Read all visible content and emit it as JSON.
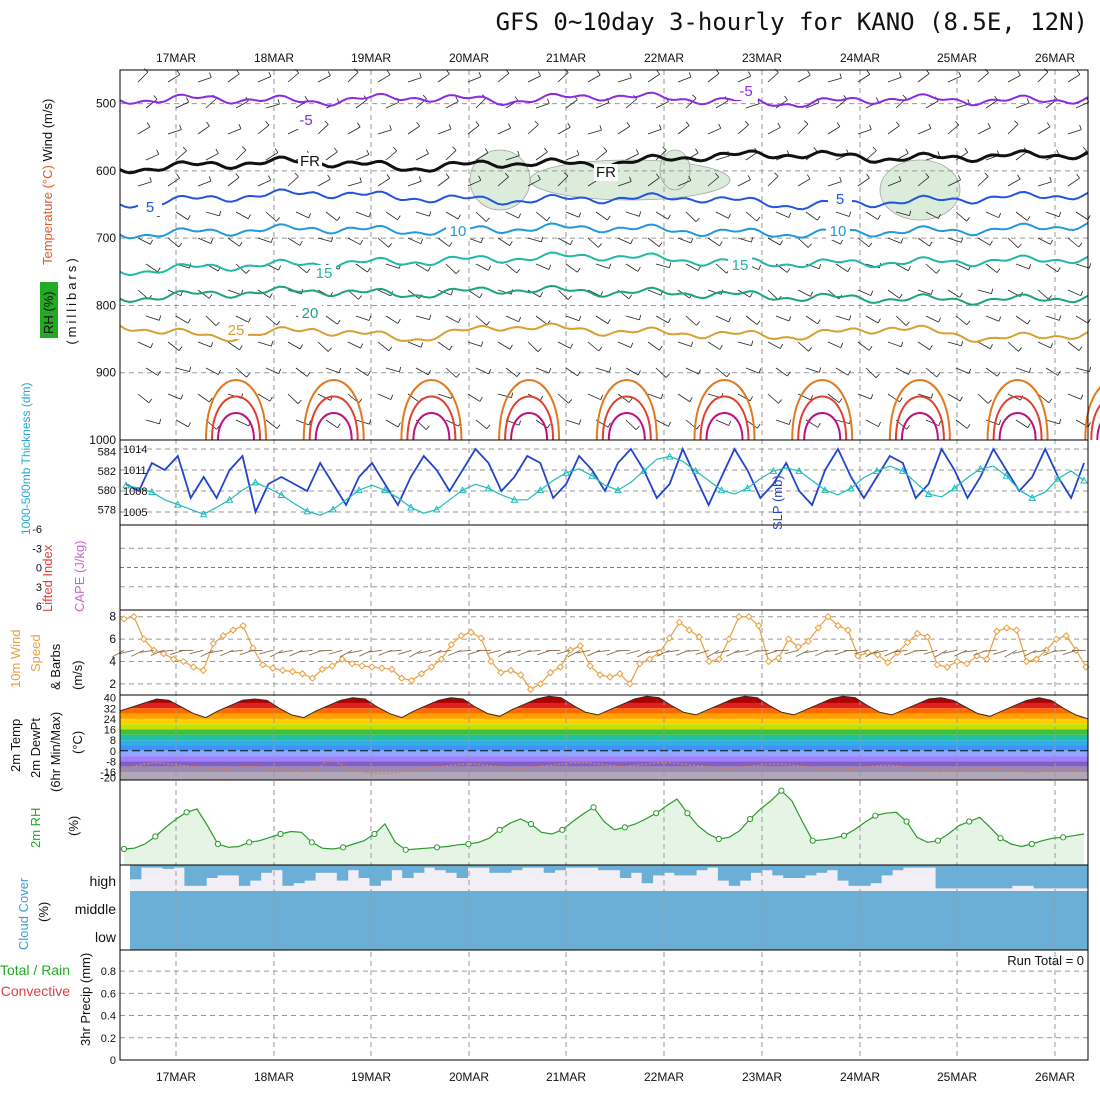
{
  "title": "GFS 0~10day 3-hourly for KANO (8.5E, 12N)",
  "colors": {
    "grid": "#9a9a9a",
    "frame": "#000000",
    "slp": "#2244cc",
    "thickness": "#22bbbb",
    "wind_speed": "#e8a040",
    "temp": "#e03020",
    "dewpt": "#8a6a4a",
    "rh2m": "#2a9a2a",
    "rh2m_fill": "#e6f4e6",
    "cloud": "#6baed6",
    "lifted_ref": "#e05050"
  },
  "chart_data": [
    {
      "type": "line",
      "panel": "upper-air",
      "ylabel_parts": [
        "Wind (m/s)",
        "Temperature (°C)",
        "RH (%)",
        "(millibars)"
      ],
      "x_tick_labels": [
        "17MAR",
        "18MAR",
        "19MAR",
        "20MAR",
        "21MAR",
        "22MAR",
        "23MAR",
        "24MAR",
        "25MAR",
        "26MAR"
      ],
      "y_ticks": [
        500,
        600,
        700,
        800,
        900,
        1000
      ],
      "ylim": [
        450,
        1000
      ],
      "contour_labels": [
        {
          "text": "-5",
          "series": "minus5_upper"
        },
        {
          "text": "-5",
          "series": "minus5_upper_b"
        },
        {
          "text": "FR",
          "series": "freezing"
        },
        {
          "text": "FR",
          "series": "freezing_b"
        },
        {
          "text": "5",
          "series": "t5"
        },
        {
          "text": "5",
          "series": "t5_b"
        },
        {
          "text": "10",
          "series": "t10"
        },
        {
          "text": "10",
          "series": "t10_b"
        },
        {
          "text": "15",
          "series": "t15"
        },
        {
          "text": "15",
          "series": "t15_b"
        },
        {
          "text": "20",
          "series": "t20"
        },
        {
          "text": "25",
          "series": "t25"
        }
      ],
      "isotherm_levels_hpa": {
        "minus5": [
          495,
          492,
          497,
          490,
          496,
          488,
          494,
          500,
          492,
          496,
          493
        ],
        "freezing": [
          598,
          590,
          585,
          596,
          588,
          590,
          578,
          575,
          582,
          578,
          575
        ],
        "t5": [
          650,
          640,
          632,
          640,
          644,
          641,
          640,
          652,
          646,
          640,
          635
        ],
        "t10": [
          695,
          690,
          685,
          690,
          686,
          684,
          690,
          694,
          690,
          688,
          680
        ],
        "t15": [
          750,
          742,
          738,
          735,
          730,
          726,
          734,
          738,
          736,
          734,
          730
        ],
        "t20": [
          790,
          782,
          778,
          784,
          776,
          780,
          782,
          788,
          790,
          792,
          788
        ],
        "t25": [
          830,
          848,
          835,
          850,
          830,
          838,
          842,
          846,
          832,
          850,
          842
        ]
      }
    },
    {
      "type": "line",
      "panel": "thickness-slp",
      "ylabel_left": "1000-500mb Thickness (dm)",
      "ylabel_right": "SLP (mb)",
      "left_ticks": [
        578,
        580,
        582,
        584
      ],
      "right_ticks": [
        1005,
        1008,
        1011,
        1014
      ],
      "series": [
        {
          "name": "SLP",
          "axis": "right",
          "values": [
            1009,
            1008,
            1012,
            1011,
            1013,
            1007,
            1010,
            1007,
            1011,
            1013,
            1005,
            1009,
            1010,
            1009,
            1008,
            1012,
            1009,
            1006,
            1010,
            1012,
            1009,
            1006,
            1010,
            1013,
            1011,
            1008,
            1011,
            1014,
            1012,
            1008,
            1010,
            1013,
            1012,
            1007,
            1009,
            1013,
            1011,
            1008,
            1012,
            1014,
            1011,
            1007,
            1009,
            1014,
            1010,
            1006,
            1010,
            1014,
            1011,
            1007,
            1009,
            1012,
            1008,
            1006,
            1011,
            1014,
            1010,
            1007,
            1010,
            1013,
            1012,
            1007,
            1009,
            1014,
            1011,
            1007,
            1010,
            1014,
            1011,
            1008,
            1010,
            1014,
            1010,
            1007,
            1012
          ]
        },
        {
          "name": "Thickness",
          "axis": "left",
          "values": [
            580.5,
            580.2,
            579.8,
            579.0,
            578.5,
            578.0,
            577.5,
            578.2,
            579.0,
            580.0,
            580.8,
            580.2,
            579.5,
            578.6,
            577.8,
            577.4,
            578.0,
            579.0,
            580.0,
            580.5,
            580.0,
            579.2,
            578.2,
            577.6,
            578.0,
            579.0,
            580.0,
            580.6,
            580.2,
            579.5,
            579.0,
            579.0,
            580.0,
            581.0,
            581.8,
            582.2,
            581.5,
            580.5,
            580.0,
            580.8,
            582.0,
            583.2,
            583.5,
            583.0,
            582.0,
            581.0,
            580.0,
            579.6,
            580.2,
            581.2,
            582.0,
            582.3,
            582.0,
            581.0,
            580.0,
            579.5,
            580.2,
            581.3,
            582.0,
            582.5,
            582.0,
            580.8,
            579.6,
            579.3,
            580.2,
            581.3,
            582.2,
            582.5,
            581.5,
            580.0,
            579.2,
            579.8,
            581.2,
            582.0,
            581.0
          ]
        }
      ]
    },
    {
      "type": "line",
      "panel": "lifted-cape",
      "ylabel_parts": [
        "Lifted Index",
        "CAPE (J/kg)"
      ],
      "y_tick_labels": [
        "-6",
        "-3",
        "0",
        "3",
        "6"
      ],
      "y_values": [
        -6,
        -3,
        0,
        3,
        6
      ]
    },
    {
      "type": "line",
      "panel": "wind10m",
      "ylabel_parts": [
        "10m Wind",
        "Speed",
        "& Barbs",
        "(m/s)"
      ],
      "y_ticks": [
        2,
        4,
        6,
        8
      ],
      "ylim": [
        1,
        8.6
      ],
      "series": [
        {
          "name": "Speed",
          "values": [
            7.8,
            8.0,
            6.0,
            5.0,
            4.7,
            4.2,
            4.0,
            3.5,
            3.2,
            5.6,
            6.3,
            6.8,
            7.2,
            5.2,
            3.7,
            3.4,
            3.2,
            3.1,
            2.9,
            2.5,
            3.3,
            3.6,
            4.2,
            3.8,
            3.6,
            3.5,
            3.4,
            3.3,
            2.5,
            2.3,
            2.9,
            3.5,
            4.2,
            5.5,
            6.3,
            6.6,
            6.1,
            4.0,
            3.0,
            3.2,
            2.8,
            1.5,
            2.0,
            3.0,
            3.5,
            5.0,
            5.4,
            3.6,
            2.8,
            2.6,
            2.9,
            2.0,
            3.8,
            4.2,
            4.8,
            6.1,
            7.5,
            6.8,
            6.2,
            4.0,
            4.2,
            6.0,
            8.0,
            8.0,
            7.2,
            4.0,
            4.3,
            6.0,
            5.3,
            5.8,
            7.0,
            8.0,
            7.2,
            6.8,
            4.5,
            4.8,
            4.6,
            3.9,
            4.8,
            5.7,
            6.5,
            6.2,
            3.7,
            3.5,
            4.0,
            3.8,
            4.5,
            4.2,
            6.7,
            7.0,
            6.8,
            4.0,
            4.2,
            5.0,
            6.0,
            6.3,
            5.0,
            3.5
          ]
        }
      ]
    },
    {
      "type": "area",
      "panel": "temp-dewpt",
      "ylabel_parts": [
        "2m Temp",
        "2m DewPt",
        "(6hr Min/Max)",
        "(°C)"
      ],
      "y_tick_labels": [
        "40",
        "32",
        "24",
        "16",
        "8",
        "0",
        "-8",
        "-16",
        "-20"
      ],
      "y_values": [
        40,
        32,
        24,
        16,
        8,
        0,
        -8,
        -16,
        -20
      ],
      "ylim": [
        -22,
        42
      ],
      "series": [
        {
          "name": "Temp",
          "values": [
            30,
            33,
            36,
            39,
            38,
            33,
            28,
            25,
            30,
            34,
            38,
            39,
            38,
            32,
            27,
            25,
            30,
            34,
            38,
            40,
            39,
            33,
            28,
            25,
            30,
            34,
            38,
            40,
            39,
            33,
            28,
            26,
            31,
            35,
            39,
            41,
            40,
            34,
            29,
            27,
            31,
            35,
            39,
            41,
            40,
            34,
            29,
            27,
            31,
            35,
            39,
            41,
            40,
            34,
            29,
            27,
            31,
            35,
            39,
            41,
            40,
            34,
            29,
            27,
            31,
            35,
            39,
            40,
            38,
            33,
            28,
            26,
            30,
            34,
            38,
            40,
            38,
            32,
            27,
            24
          ]
        },
        {
          "name": "DewPt",
          "values": [
            -14,
            -12,
            -10,
            -9,
            -10,
            -11,
            -12,
            -13,
            -14,
            -13,
            -12,
            -12,
            -13,
            -14,
            -15,
            -16,
            -15,
            -6,
            -10,
            -15,
            -16,
            -17,
            -17,
            -16,
            -14,
            -13,
            -12,
            -11,
            -10,
            -10,
            -11,
            -12,
            -13,
            -13,
            -12,
            -11,
            -10,
            -9,
            -9,
            -10,
            -11,
            -12,
            -11,
            -10,
            -9,
            -9,
            -10,
            -11,
            -12,
            -13,
            -13,
            -12,
            -11,
            -10,
            -10,
            -11,
            -12,
            -13,
            -14,
            -14,
            -13,
            -12,
            -11,
            -11,
            -12,
            -13,
            -14,
            -16,
            -15,
            -14,
            -13,
            -13,
            -14,
            -15,
            -16,
            -16,
            -15,
            -14,
            -15,
            -16
          ]
        }
      ]
    },
    {
      "type": "area",
      "panel": "rh2m",
      "ylabel_parts": [
        "2m RH",
        "(%)"
      ],
      "series": [
        {
          "name": "RH",
          "values": [
            12,
            13,
            18,
            27,
            38,
            48,
            56,
            60,
            40,
            18,
            14,
            15,
            20,
            22,
            26,
            30,
            33,
            32,
            20,
            13,
            12,
            14,
            18,
            22,
            30,
            42,
            20,
            11,
            12,
            13,
            14,
            15,
            17,
            18,
            20,
            25,
            35,
            43,
            48,
            42,
            32,
            30,
            35,
            45,
            54,
            62,
            45,
            35,
            38,
            42,
            48,
            55,
            64,
            72,
            55,
            40,
            30,
            24,
            26,
            34,
            48,
            60,
            70,
            82,
            70,
            45,
            22,
            23,
            25,
            28,
            35,
            44,
            52,
            55,
            56,
            45,
            26,
            20,
            22,
            30,
            40,
            45,
            50,
            38,
            25,
            18,
            15,
            18,
            22,
            25,
            26,
            28,
            30
          ]
        }
      ]
    },
    {
      "type": "area",
      "panel": "cloud",
      "ylabel_parts": [
        "Cloud Cover",
        "(%)"
      ],
      "category_labels": [
        "high",
        "middle",
        "low"
      ],
      "series": [
        {
          "name": "high",
          "values": [
            0.55,
            0.1,
            0.1,
            0.15,
            0.1,
            0.8,
            0.8,
            0.5,
            0.4,
            0.4,
            0.8,
            0.6,
            0.3,
            0.2,
            0.8,
            0.7,
            0.6,
            0.3,
            0.3,
            0.6,
            0.2,
            0.5,
            0.8,
            0.6,
            0.2,
            0.5,
            0.3,
            0.1,
            0.2,
            0.3,
            0.5,
            0.1,
            0.1,
            0.3,
            0.3,
            0.2,
            0.1,
            0.1,
            0.3,
            0.2,
            0.1,
            0.1,
            0.1,
            0.2,
            0.2,
            0.5,
            0.3,
            0.7,
            0.4,
            0.3,
            0.4,
            0.4,
            0.2,
            0.1,
            0.6,
            0.8,
            0.6,
            0.3,
            0.2,
            0.4,
            0.5,
            0.5,
            0.4,
            0.3,
            0.2,
            0.6,
            0.8,
            0.8,
            0.7,
            0.4,
            0.2,
            0.1,
            0.1,
            0.1,
            0.9,
            0.9,
            0.9,
            0.9,
            0.9,
            0.9,
            0.9,
            0.8,
            0.8,
            0.9,
            0.9,
            0.9,
            0.9,
            0.9
          ]
        }
      ]
    },
    {
      "type": "line",
      "panel": "precip",
      "ylabel_parts": [
        "3hr Precip (mm)",
        "Total / Rain",
        "Convective"
      ],
      "y_tick_labels": [
        "0",
        "0.2",
        "0.4",
        "0.6",
        "0.8"
      ],
      "y_values": [
        0,
        0.2,
        0.4,
        0.6,
        0.8
      ],
      "run_total": "Run Total = 0"
    }
  ]
}
